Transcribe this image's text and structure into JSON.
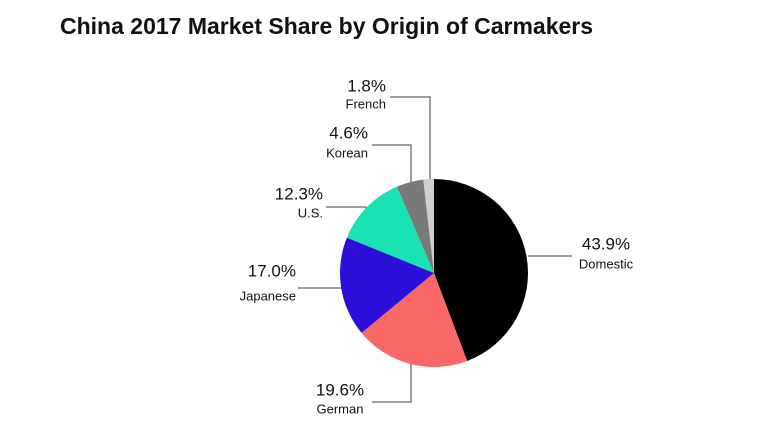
{
  "chart_data": {
    "type": "pie",
    "title": "China 2017 Market Share by Origin of Carmakers",
    "categories": [
      "Domestic",
      "German",
      "Japanese",
      "U.S.",
      "Korean",
      "French"
    ],
    "values": [
      43.9,
      19.6,
      17.0,
      12.3,
      4.6,
      1.8
    ],
    "value_labels": [
      "43.9%",
      "19.6%",
      "17.0%",
      "12.3%",
      "4.6%",
      "1.8%"
    ],
    "colors": [
      "#000000",
      "#fa6767",
      "#2c0fd8",
      "#1ae3b3",
      "#7a7a7a",
      "#cfcfcf"
    ]
  }
}
